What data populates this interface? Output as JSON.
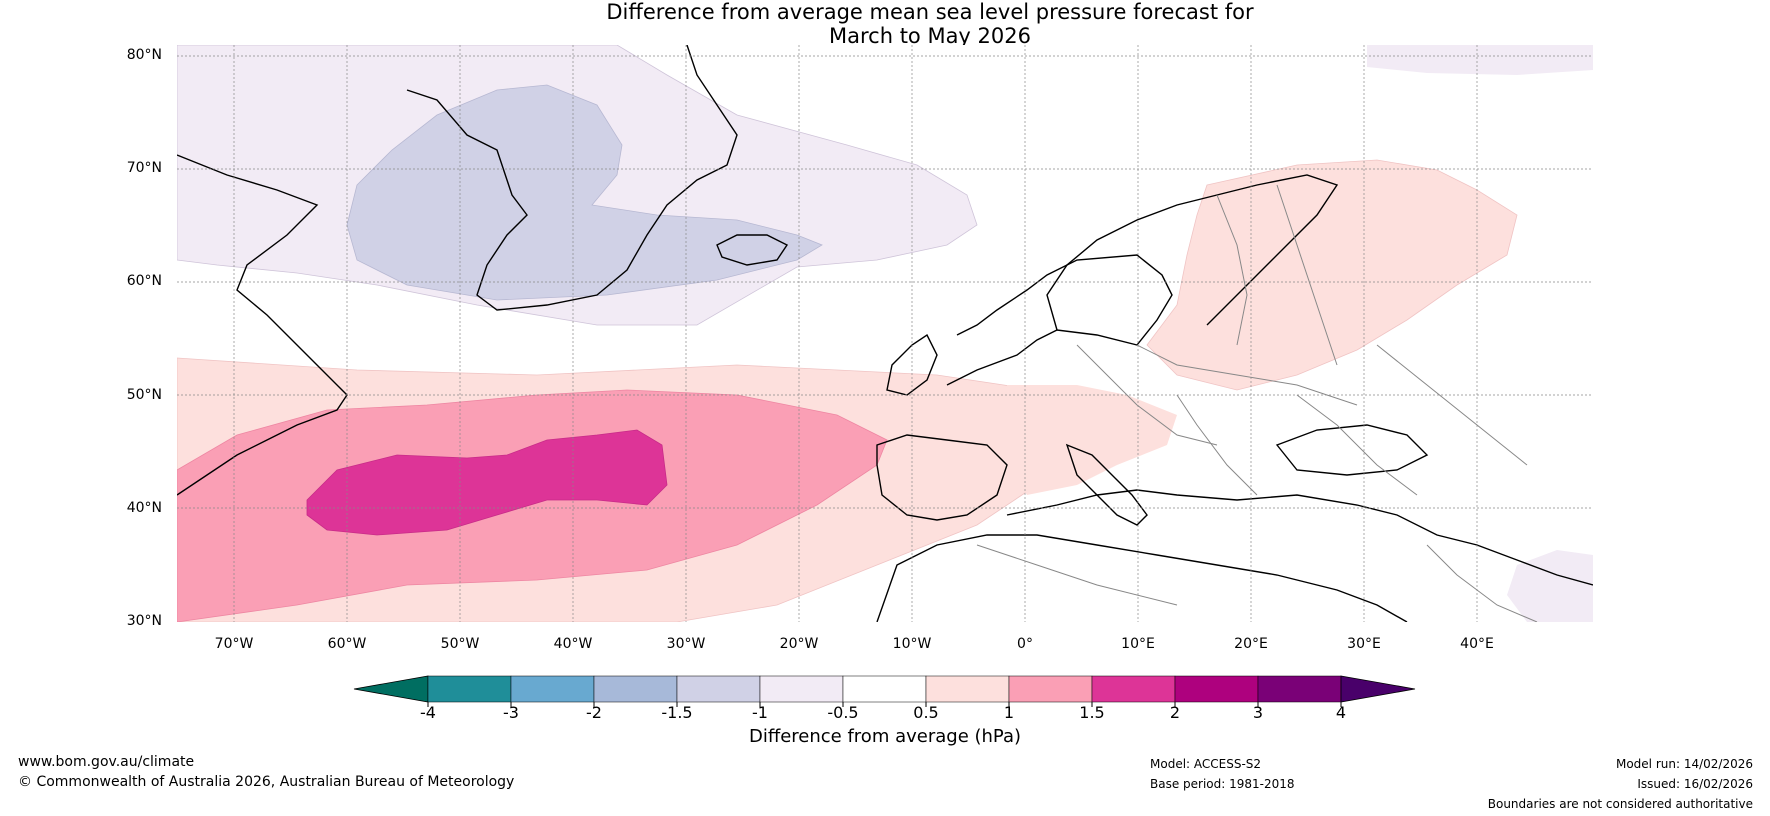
{
  "title": {
    "line1": "Difference from average mean sea level pressure forecast for",
    "line2": "March to May 2026"
  },
  "axes": {
    "lat_labels": [
      "80°N",
      "70°N",
      "60°N",
      "50°N",
      "40°N",
      "30°N"
    ],
    "lon_labels": [
      "70°W",
      "60°W",
      "50°W",
      "40°W",
      "30°W",
      "20°W",
      "10°W",
      "0°",
      "10°E",
      "20°E",
      "30°E",
      "40°E"
    ]
  },
  "colorbar": {
    "title": "Difference from average (hPa)",
    "labels": [
      "-4",
      "-3",
      "-2",
      "-1.5",
      "-1",
      "-0.5",
      "0.5",
      "1",
      "1.5",
      "2",
      "3",
      "4"
    ],
    "colors": {
      "below_min": "#006e61",
      "bins": [
        "#1f8e99",
        "#68a9d0",
        "#a7b9d9",
        "#d0d1e6",
        "#f2ebf5",
        "#ffffff",
        "#fde0dd",
        "#fa9fb5",
        "#dd3497",
        "#ae017e",
        "#7a0177"
      ],
      "above_max": "#49006a"
    }
  },
  "footer": {
    "website": "www.bom.gov.au/climate",
    "copyright": "© Commonwealth of Australia 2026, Australian Bureau of Meteorology",
    "model": "Model: ACCESS-S2",
    "base_period": "Base period: 1981-2018",
    "model_run": "Model run: 14/02/2026",
    "issued": "Issued: 16/02/2026",
    "disclaimer": "Boundaries are not considered authoritative"
  }
}
